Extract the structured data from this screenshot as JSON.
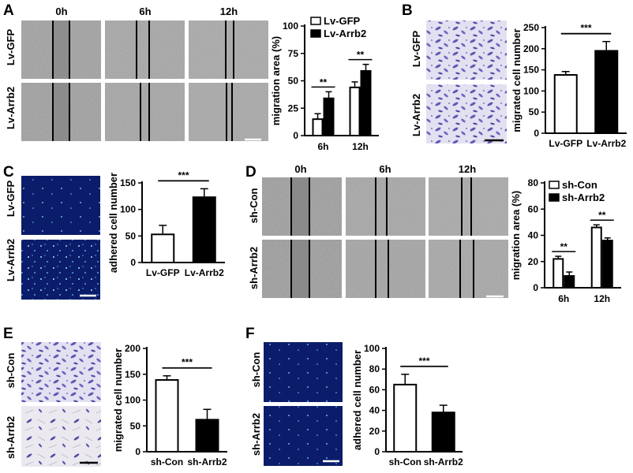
{
  "figure": {
    "panel_labels": [
      "A",
      "B",
      "C",
      "D",
      "E",
      "F"
    ],
    "a": {
      "time_headers": [
        "0h",
        "6h",
        "12h"
      ],
      "row_labels": [
        "Lv-GFP",
        "Lv-Arrb2"
      ]
    },
    "b": {
      "row_labels": [
        "Lv-GFP",
        "Lv-Arrb2"
      ]
    },
    "c": {
      "row_labels": [
        "Lv-GFP",
        "Lv-Arrb2"
      ]
    },
    "d": {
      "time_headers": [
        "0h",
        "6h",
        "12h"
      ],
      "row_labels": [
        "sh-Con",
        "sh-Arrb2"
      ]
    },
    "e": {
      "row_labels": [
        "sh-Con",
        "sh-Arrb2"
      ]
    },
    "f": {
      "row_labels": [
        "sh-Con",
        "sh-Arrb2"
      ]
    },
    "colors": {
      "wound_gray": "#9a9a9a",
      "crystal_violet": "#7b78c4",
      "dapi_blue": "#0b1d6a",
      "scale_bar": "#ffffff"
    }
  },
  "chart_data": [
    {
      "panel": "A",
      "type": "bar",
      "categories": [
        "6h",
        "12h"
      ],
      "series": [
        {
          "name": "Lv-GFP",
          "values": [
            15,
            44
          ],
          "errors": [
            5,
            5
          ]
        },
        {
          "name": "Lv-Arrb2",
          "values": [
            34,
            59
          ],
          "errors": [
            6,
            6
          ]
        }
      ],
      "ylabel": "migration area (%)",
      "ylim": [
        0,
        100
      ],
      "yticks": [
        0,
        25,
        50,
        75,
        100
      ],
      "significance": [
        "**",
        "**"
      ]
    },
    {
      "panel": "B",
      "type": "bar",
      "categories": [
        "Lv-GFP",
        "Lv-Arrb2"
      ],
      "series": [
        {
          "name": "migrated",
          "values": [
            138,
            195
          ],
          "errors": [
            8,
            22
          ]
        }
      ],
      "ylabel": "migrated cell number",
      "ylim": [
        0,
        250
      ],
      "yticks": [
        0,
        50,
        100,
        150,
        200,
        250
      ],
      "significance": "***"
    },
    {
      "panel": "C",
      "type": "bar",
      "categories": [
        "Lv-GFP",
        "Lv-Arrb2"
      ],
      "series": [
        {
          "name": "adhered",
          "values": [
            53,
            123
          ],
          "errors": [
            17,
            16
          ]
        }
      ],
      "ylabel": "adhered cell number",
      "ylim": [
        0,
        150
      ],
      "yticks": [
        0,
        50,
        100,
        150
      ],
      "significance": "***"
    },
    {
      "panel": "D",
      "type": "bar",
      "categories": [
        "6h",
        "12h"
      ],
      "series": [
        {
          "name": "sh-Con",
          "values": [
            22,
            46
          ],
          "errors": [
            2,
            2
          ]
        },
        {
          "name": "sh-Arrb2",
          "values": [
            9,
            36
          ],
          "errors": [
            3,
            2
          ]
        }
      ],
      "ylabel": "migration area (%)",
      "ylim": [
        0,
        80
      ],
      "yticks": [
        0,
        20,
        40,
        60,
        80
      ],
      "significance": [
        "**",
        "**"
      ]
    },
    {
      "panel": "E",
      "type": "bar",
      "categories": [
        "sh-Con",
        "sh-Arrb2"
      ],
      "series": [
        {
          "name": "migrated",
          "values": [
            139,
            62
          ],
          "errors": [
            8,
            20
          ]
        }
      ],
      "ylabel": "migrated cell number",
      "ylim": [
        0,
        200
      ],
      "yticks": [
        0,
        50,
        100,
        150,
        200
      ],
      "significance": "***"
    },
    {
      "panel": "F",
      "type": "bar",
      "categories": [
        "sh-Con",
        "sh-Arrb2"
      ],
      "series": [
        {
          "name": "adhered",
          "values": [
            65,
            38
          ],
          "errors": [
            10,
            7
          ]
        }
      ],
      "ylabel": "adhered cell number",
      "ylim": [
        0,
        100
      ],
      "yticks": [
        0,
        20,
        40,
        60,
        80,
        100
      ],
      "significance": "***"
    }
  ]
}
